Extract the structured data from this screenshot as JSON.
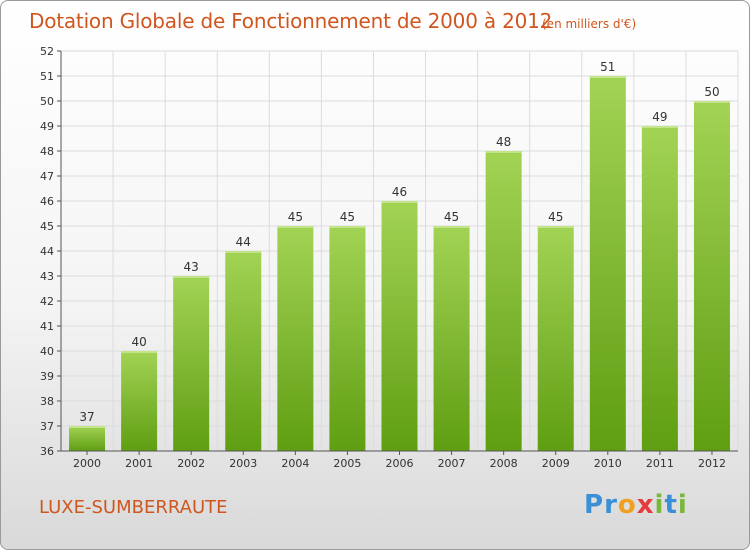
{
  "title": "Dotation Globale de Fonctionnement de 2000 à 2012",
  "unit_note": "(en milliers d'€)",
  "commune": "LUXE-SUMBERRAUTE",
  "brand": {
    "text": "Proxiti",
    "letters": [
      {
        "ch": "P",
        "color": "#3a8fd6"
      },
      {
        "ch": "r",
        "color": "#3a8fd6"
      },
      {
        "ch": "o",
        "color": "#f0a020"
      },
      {
        "ch": "x",
        "color": "#e53b3b"
      },
      {
        "ch": "i",
        "color": "#7ab83a"
      },
      {
        "ch": "t",
        "color": "#3a8fd6"
      },
      {
        "ch": "i",
        "color": "#7ab83a"
      }
    ]
  },
  "colors": {
    "title": "#d0561f",
    "bar_top": "#a3d355",
    "bar_bottom": "#5f9e12",
    "grid": "#dcdcdc",
    "axis": "#555555"
  },
  "chart_data": {
    "type": "bar",
    "categories": [
      "2000",
      "2001",
      "2002",
      "2003",
      "2004",
      "2005",
      "2006",
      "2007",
      "2008",
      "2009",
      "2010",
      "2011",
      "2012"
    ],
    "values": [
      37,
      40,
      43,
      44,
      45,
      45,
      46,
      45,
      48,
      45,
      51,
      49,
      50
    ],
    "ylim": [
      36,
      52
    ],
    "yticks": [
      36,
      37,
      38,
      39,
      40,
      41,
      42,
      43,
      44,
      45,
      46,
      47,
      48,
      49,
      50,
      51,
      52
    ],
    "grid": true,
    "data_labels": true
  }
}
